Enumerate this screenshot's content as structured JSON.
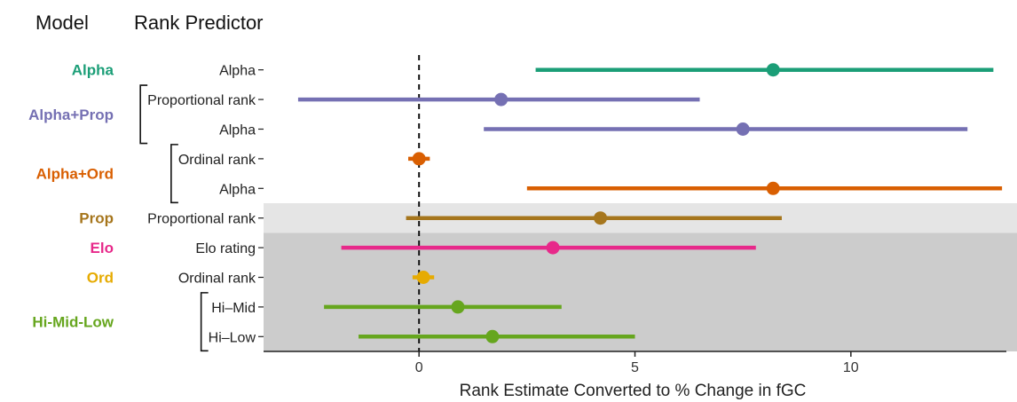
{
  "headers": {
    "model": "Model",
    "predictor": "Rank Predictor"
  },
  "chart_data": {
    "type": "forest",
    "title": "",
    "xlabel": "Rank Estimate Converted to % Change in fGC",
    "ylabel": "",
    "xlim": [
      -3.6,
      13.6
    ],
    "xticks": [
      0,
      5,
      10
    ],
    "reference_line": 0,
    "models": [
      {
        "name": "Alpha",
        "color": "#1b9e77",
        "predictors": [
          "Alpha"
        ]
      },
      {
        "name": "Alpha+Prop",
        "color": "#7570b3",
        "predictors": [
          "Proportional rank",
          "Alpha"
        ]
      },
      {
        "name": "Alpha+Ord",
        "color": "#d95f02",
        "predictors": [
          "Ordinal rank",
          "Alpha"
        ]
      },
      {
        "name": "Prop",
        "color": "#a6761d",
        "predictors": [
          "Proportional rank"
        ]
      },
      {
        "name": "Elo",
        "color": "#e7298a",
        "predictors": [
          "Elo rating"
        ]
      },
      {
        "name": "Ord",
        "color": "#e6ab02",
        "predictors": [
          "Ordinal rank"
        ]
      },
      {
        "name": "Hi-Mid-Low",
        "color": "#66a61e",
        "predictors": [
          "Hi–Mid",
          "Hi–Low"
        ]
      }
    ],
    "rows": [
      {
        "model": "Alpha",
        "predictor": "Alpha",
        "estimate": 8.2,
        "lower": 2.7,
        "upper": 13.3
      },
      {
        "model": "Alpha+Prop",
        "predictor": "Proportional rank",
        "estimate": 1.9,
        "lower": -2.8,
        "upper": 6.5
      },
      {
        "model": "Alpha+Prop",
        "predictor": "Alpha",
        "estimate": 7.5,
        "lower": 1.5,
        "upper": 12.7
      },
      {
        "model": "Alpha+Ord",
        "predictor": "Ordinal rank",
        "estimate": 0.0,
        "lower": -0.25,
        "upper": 0.25
      },
      {
        "model": "Alpha+Ord",
        "predictor": "Alpha",
        "estimate": 8.2,
        "lower": 2.5,
        "upper": 13.5
      },
      {
        "model": "Prop",
        "predictor": "Proportional rank",
        "estimate": 4.2,
        "lower": -0.3,
        "upper": 8.4
      },
      {
        "model": "Elo",
        "predictor": "Elo rating",
        "estimate": 3.1,
        "lower": -1.8,
        "upper": 7.8
      },
      {
        "model": "Ord",
        "predictor": "Ordinal rank",
        "estimate": 0.1,
        "lower": -0.15,
        "upper": 0.35
      },
      {
        "model": "Hi-Mid-Low",
        "predictor": "Hi–Mid",
        "estimate": 0.9,
        "lower": -2.2,
        "upper": 3.3
      },
      {
        "model": "Hi-Mid-Low",
        "predictor": "Hi–Low",
        "estimate": 1.7,
        "lower": -1.4,
        "upper": 5.0
      }
    ],
    "shading": [
      {
        "rows": [
          5
        ],
        "color": "#e5e5e5"
      },
      {
        "rows": [
          6,
          7,
          8,
          9
        ],
        "color": "#cccccc"
      }
    ],
    "grid": false,
    "legend": "none"
  }
}
